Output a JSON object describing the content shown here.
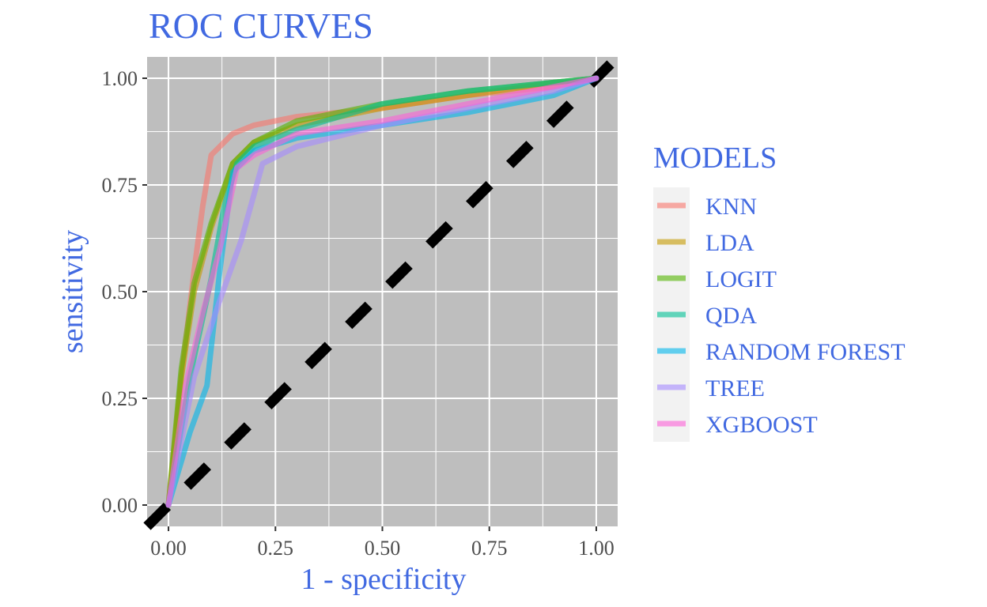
{
  "chart_data": {
    "type": "line",
    "title": "ROC CURVES",
    "xlabel": "1 - specificity",
    "ylabel": "sensitivity",
    "xlim": [
      -0.05,
      1.05
    ],
    "ylim": [
      -0.05,
      1.05
    ],
    "x_ticks": [
      "0.00",
      "0.25",
      "0.50",
      "0.75",
      "1.00"
    ],
    "y_ticks": [
      "0.00",
      "0.25",
      "0.50",
      "0.75",
      "1.00"
    ],
    "grid": true,
    "legend": {
      "title": "MODELS",
      "position": "right"
    },
    "reference_line": {
      "x": [
        0,
        1
      ],
      "y": [
        0,
        1
      ],
      "style": "dashed"
    },
    "series": [
      {
        "name": "KNN",
        "color": "#F8766D",
        "x": [
          0,
          0.03,
          0.06,
          0.08,
          0.1,
          0.12,
          0.15,
          0.2,
          0.3,
          0.5,
          0.7,
          0.9,
          1.0
        ],
        "y": [
          0,
          0.3,
          0.55,
          0.7,
          0.82,
          0.84,
          0.87,
          0.89,
          0.91,
          0.93,
          0.96,
          0.98,
          1.0
        ]
      },
      {
        "name": "LDA",
        "color": "#C49A00",
        "x": [
          0,
          0.03,
          0.06,
          0.1,
          0.15,
          0.2,
          0.3,
          0.5,
          0.7,
          0.9,
          1.0
        ],
        "y": [
          0,
          0.3,
          0.5,
          0.65,
          0.8,
          0.85,
          0.89,
          0.93,
          0.96,
          0.99,
          1.0
        ]
      },
      {
        "name": "LOGIT",
        "color": "#53B400",
        "x": [
          0,
          0.03,
          0.06,
          0.1,
          0.15,
          0.2,
          0.3,
          0.5,
          0.7,
          0.9,
          1.0
        ],
        "y": [
          0,
          0.32,
          0.52,
          0.66,
          0.8,
          0.85,
          0.9,
          0.94,
          0.97,
          0.99,
          1.0
        ]
      },
      {
        "name": "QDA",
        "color": "#00C094",
        "x": [
          0,
          0.05,
          0.1,
          0.13,
          0.16,
          0.2,
          0.3,
          0.5,
          0.7,
          0.9,
          1.0
        ],
        "y": [
          0,
          0.3,
          0.53,
          0.7,
          0.8,
          0.84,
          0.88,
          0.94,
          0.97,
          0.99,
          1.0
        ]
      },
      {
        "name": "RANDOM FOREST",
        "color": "#00B6EB",
        "x": [
          0,
          0.05,
          0.09,
          0.12,
          0.15,
          0.2,
          0.3,
          0.5,
          0.7,
          0.9,
          1.0
        ],
        "y": [
          0,
          0.17,
          0.28,
          0.55,
          0.78,
          0.83,
          0.86,
          0.89,
          0.92,
          0.96,
          1.0
        ]
      },
      {
        "name": "TREE",
        "color": "#A58AFF",
        "x": [
          0,
          0.06,
          0.12,
          0.17,
          0.22,
          0.3,
          0.5,
          0.7,
          0.9,
          1.0
        ],
        "y": [
          0,
          0.3,
          0.48,
          0.62,
          0.8,
          0.84,
          0.89,
          0.93,
          0.97,
          1.0
        ]
      },
      {
        "name": "XGBOOST",
        "color": "#FB61D7",
        "x": [
          0,
          0.04,
          0.08,
          0.12,
          0.16,
          0.2,
          0.3,
          0.5,
          0.7,
          0.9,
          1.0
        ],
        "y": [
          0,
          0.28,
          0.45,
          0.6,
          0.79,
          0.82,
          0.87,
          0.9,
          0.94,
          0.98,
          1.0
        ]
      }
    ],
    "colors": {
      "title": "#4169E1",
      "panel": "#BEBEBE",
      "grid": "#FFFFFF",
      "legend_key_bg": "#F2F2F2",
      "reference_line": "#000000"
    }
  }
}
